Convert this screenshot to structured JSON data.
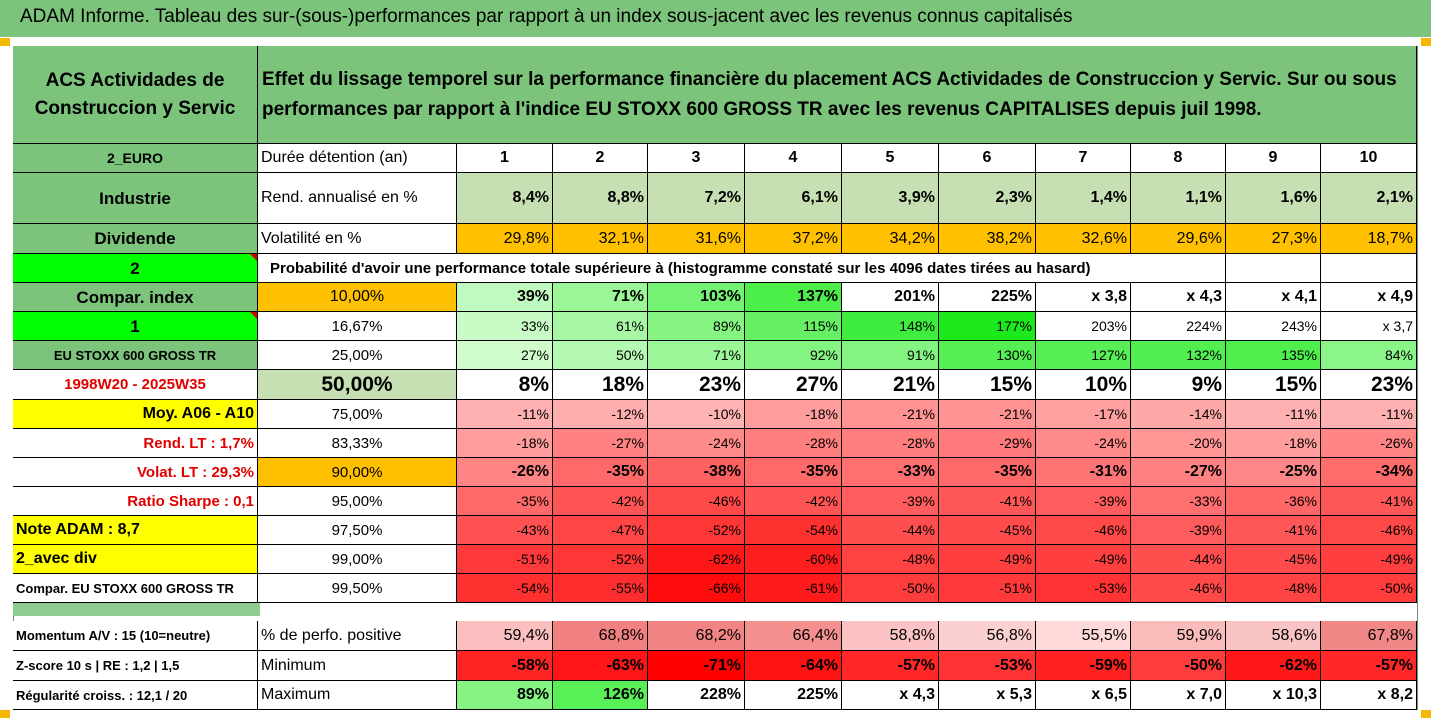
{
  "title": "ADAM Informe. Tableau des sur-(sous-)performances par rapport à un index sous-jacent avec les revenus connus capitalisés",
  "header": {
    "company": "ACS Actividades de Construccion y Servic",
    "description": "Effet du lissage temporel sur la performance financière du placement ACS Actividades de Construccion y Servic. Sur ou sous performances par rapport à l'indice EU STOXX 600 GROSS TR avec les revenus CAPITALISES depuis juil 1998."
  },
  "left_labels": {
    "currency": "2_EURO",
    "sector": "Industrie",
    "dividend": "Dividende",
    "level": "2",
    "compar_index": "Compar. index",
    "level2": "1",
    "index_name": "EU STOXX 600 GROSS TR",
    "period": "1998W20 - 2025W35",
    "moy": "Moy. A06 - A10",
    "rend_lt": "Rend. LT :   1,7%",
    "volat_lt": "Volat. LT :   29,3%",
    "sharpe": "Ratio Sharpe :   0,1",
    "note": "Note ADAM : 8,7",
    "avec_div": "2_avec div",
    "compar_full": "Compar. EU STOXX 600 GROSS TR",
    "momentum": "Momentum A/V : 15 (10=neutre)",
    "zscore": "Z-score 10 s  | RE : 1,2  | 1,5",
    "regularite": "Régularité croiss. : 12,1 / 20"
  },
  "row_labels": {
    "duree": "Durée détention (an)",
    "rend": "Rend. annualisé en %",
    "volat": "Volatilité en %",
    "proba": "Probabilité d'avoir une performance totale supérieure à (histogramme constaté sur les 4096 dates tirées au hasard)",
    "positive": "% de perfo. positive",
    "minimum": "Minimum",
    "maximum": "Maximum"
  },
  "years": [
    "1",
    "2",
    "3",
    "4",
    "5",
    "6",
    "7",
    "8",
    "9",
    "10"
  ],
  "rend": [
    "8,4%",
    "8,8%",
    "7,2%",
    "6,1%",
    "3,9%",
    "2,3%",
    "1,4%",
    "1,1%",
    "1,6%",
    "2,1%"
  ],
  "volat": [
    "29,8%",
    "32,1%",
    "31,6%",
    "37,2%",
    "34,2%",
    "38,2%",
    "32,6%",
    "29,6%",
    "27,3%",
    "18,7%"
  ],
  "quantiles": [
    {
      "q": "10,00%",
      "v": [
        "39%",
        "71%",
        "103%",
        "137%",
        "201%",
        "225%",
        "x 3,8",
        "x 4,3",
        "x 4,1",
        "x 4,9"
      ]
    },
    {
      "q": "16,67%",
      "v": [
        "33%",
        "61%",
        "89%",
        "115%",
        "148%",
        "177%",
        "203%",
        "224%",
        "243%",
        "x 3,7"
      ]
    },
    {
      "q": "25,00%",
      "v": [
        "27%",
        "50%",
        "71%",
        "92%",
        "91%",
        "130%",
        "127%",
        "132%",
        "135%",
        "84%"
      ]
    },
    {
      "q": "50,00%",
      "v": [
        "8%",
        "18%",
        "23%",
        "27%",
        "21%",
        "15%",
        "10%",
        "9%",
        "15%",
        "23%"
      ]
    },
    {
      "q": "75,00%",
      "v": [
        "-11%",
        "-12%",
        "-10%",
        "-18%",
        "-21%",
        "-21%",
        "-17%",
        "-14%",
        "-11%",
        "-11%"
      ]
    },
    {
      "q": "83,33%",
      "v": [
        "-18%",
        "-27%",
        "-24%",
        "-28%",
        "-28%",
        "-29%",
        "-24%",
        "-20%",
        "-18%",
        "-26%"
      ]
    },
    {
      "q": "90,00%",
      "v": [
        "-26%",
        "-35%",
        "-38%",
        "-35%",
        "-33%",
        "-35%",
        "-31%",
        "-27%",
        "-25%",
        "-34%"
      ]
    },
    {
      "q": "95,00%",
      "v": [
        "-35%",
        "-42%",
        "-46%",
        "-42%",
        "-39%",
        "-41%",
        "-39%",
        "-33%",
        "-36%",
        "-41%"
      ]
    },
    {
      "q": "97,50%",
      "v": [
        "-43%",
        "-47%",
        "-52%",
        "-54%",
        "-44%",
        "-45%",
        "-46%",
        "-39%",
        "-41%",
        "-46%"
      ]
    },
    {
      "q": "99,00%",
      "v": [
        "-51%",
        "-52%",
        "-62%",
        "-60%",
        "-48%",
        "-49%",
        "-49%",
        "-44%",
        "-45%",
        "-49%"
      ]
    },
    {
      "q": "99,50%",
      "v": [
        "-54%",
        "-55%",
        "-66%",
        "-61%",
        "-50%",
        "-51%",
        "-53%",
        "-46%",
        "-48%",
        "-50%"
      ]
    }
  ],
  "positive": [
    "59,4%",
    "68,8%",
    "68,2%",
    "66,4%",
    "58,8%",
    "56,8%",
    "55,5%",
    "59,9%",
    "58,6%",
    "67,8%"
  ],
  "minimum": [
    "-58%",
    "-63%",
    "-71%",
    "-64%",
    "-57%",
    "-53%",
    "-59%",
    "-50%",
    "-62%",
    "-57%"
  ],
  "maximum": [
    "89%",
    "126%",
    "228%",
    "225%",
    "x 4,3",
    "x 5,3",
    "x 6,5",
    "x 7,0",
    "x 10,3",
    "x 8,2"
  ],
  "colors": {
    "header_green": "#7cc47c",
    "light_green": "#c6e0b4",
    "orange": "#ffc000",
    "yellow": "#ffff00",
    "bright_green": "#00ff00",
    "red_text": "#e00000"
  }
}
